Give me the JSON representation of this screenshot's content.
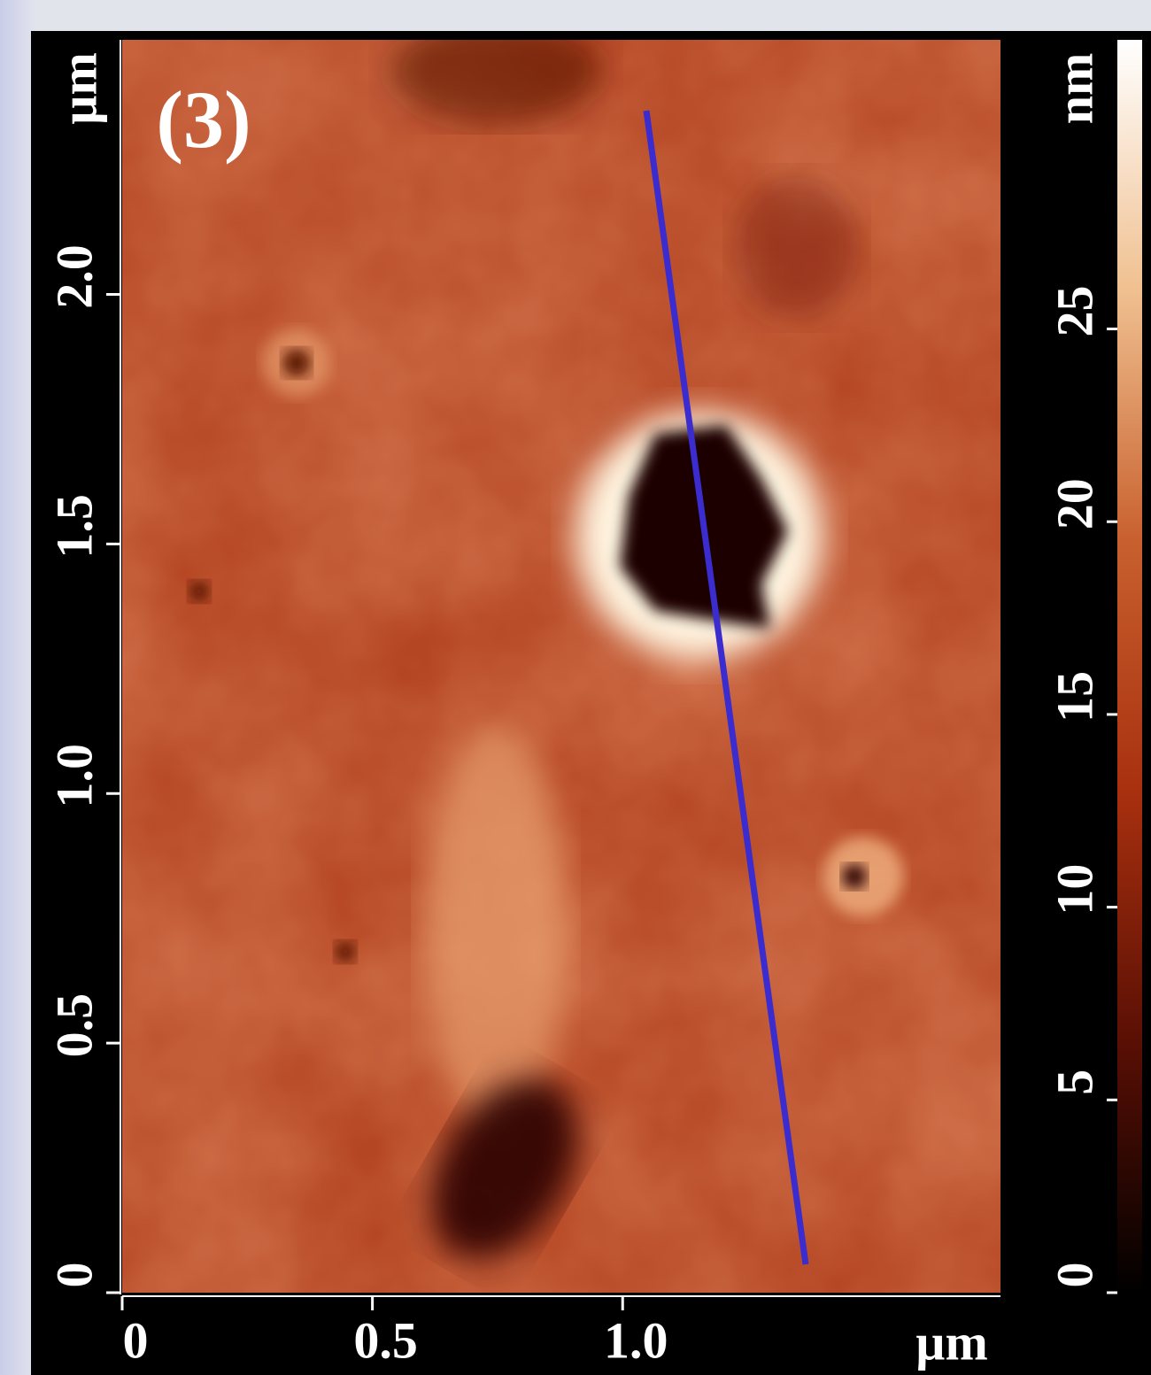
{
  "chart_data": {
    "type": "afm-image",
    "panel_label": "(3)",
    "x_unit": "µm",
    "y_unit": "µm",
    "z_unit": "nm",
    "xlim": [
      0,
      1.755
    ],
    "xticks": [
      0,
      0.5,
      {
        "value": 1,
        "label": "1.0"
      }
    ],
    "ylim": [
      0,
      2.51
    ],
    "yticks": [
      0,
      0.5,
      {
        "value": 1,
        "label": "1.0"
      },
      1.5,
      {
        "value": 2,
        "label": "2.0"
      }
    ],
    "zlim": [
      0,
      32.5
    ],
    "zticks": [
      0,
      5,
      10,
      15,
      20,
      25
    ],
    "colormap": [
      "#000000",
      "#5a0f04",
      "#a8300f",
      "#c8602e",
      "#f0c090",
      "#ffffff"
    ],
    "profile_color": "#3a2ccf"
  }
}
